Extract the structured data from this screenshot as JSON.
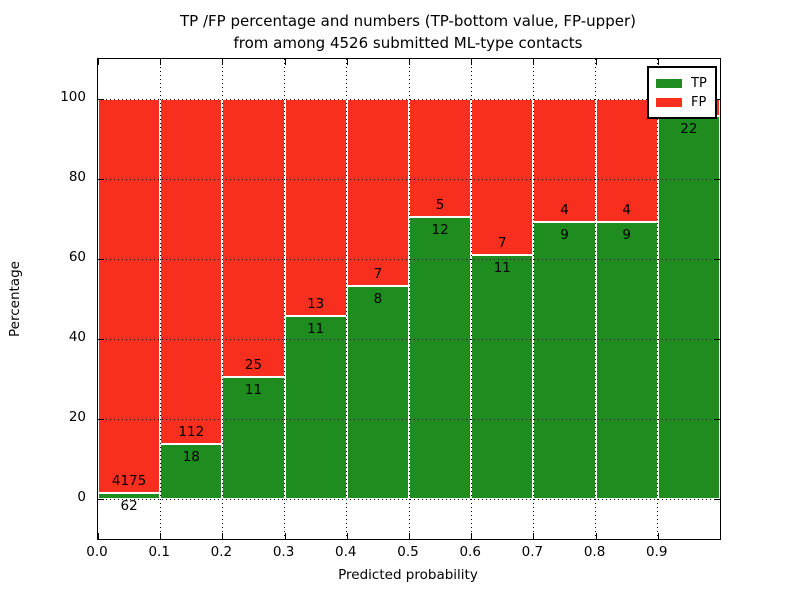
{
  "title": {
    "line1": "TP /FP percentage and numbers (TP-bottom value, FP-upper)",
    "line2": "from among 4526 submitted ML-type contacts"
  },
  "axes": {
    "xlabel": "Predicted probability",
    "ylabel": "Percentage",
    "x_tick_labels": [
      "0.0",
      "0.1",
      "0.2",
      "0.3",
      "0.4",
      "0.5",
      "0.6",
      "0.7",
      "0.8",
      "0.9"
    ],
    "y_tick_labels": [
      "0",
      "20",
      "40",
      "60",
      "80",
      "100"
    ],
    "y_tick_values": [
      0,
      20,
      40,
      60,
      80,
      100
    ],
    "xlim": [
      0.0,
      1.0
    ],
    "ylim": [
      -10,
      110
    ],
    "grid": "dotted"
  },
  "legend": {
    "position": "upper-right",
    "entries": [
      {
        "label": "TP",
        "color": "#1e8c1e"
      },
      {
        "label": "FP",
        "color": "#f82e1e"
      }
    ]
  },
  "colors": {
    "tp": "#1e8c1e",
    "fp": "#f82e1e",
    "bar_edge": "#ffffff",
    "grid": "#000000",
    "background": "#ffffff"
  },
  "chart_data": {
    "type": "bar",
    "stacked": true,
    "orientation": "vertical",
    "bin_edges": [
      0.0,
      0.1,
      0.2,
      0.3,
      0.4,
      0.5,
      0.6,
      0.7,
      0.8,
      0.9,
      1.0
    ],
    "series": [
      {
        "name": "TP",
        "counts": [
          62,
          18,
          11,
          11,
          8,
          12,
          11,
          9,
          9,
          22
        ]
      },
      {
        "name": "FP",
        "counts": [
          4175,
          112,
          25,
          13,
          7,
          5,
          7,
          4,
          4,
          null
        ]
      }
    ],
    "tp_percent": [
      1.5,
      13.8,
      30.6,
      45.8,
      53.3,
      70.6,
      61.1,
      69.2,
      69.2,
      95.7
    ],
    "tp_labels": [
      "62",
      "18",
      "11",
      "11",
      "8",
      "12",
      "11",
      "9",
      "9",
      "22"
    ],
    "fp_labels": [
      "4175",
      "112",
      "25",
      "13",
      "7",
      "5",
      "7",
      "4",
      "4",
      ""
    ],
    "total_submitted": 4526
  }
}
